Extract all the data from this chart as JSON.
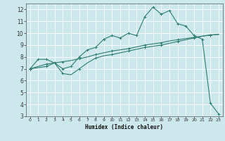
{
  "title": "",
  "xlabel": "Humidex (Indice chaleur)",
  "background_color": "#cce8ec",
  "grid_color": "#ffffff",
  "line_color": "#2e7d6e",
  "xlim": [
    -0.5,
    23.5
  ],
  "ylim": [
    3,
    12.5
  ],
  "xticks": [
    0,
    1,
    2,
    3,
    4,
    5,
    6,
    7,
    8,
    9,
    10,
    11,
    12,
    13,
    14,
    15,
    16,
    17,
    18,
    19,
    20,
    21,
    22,
    23
  ],
  "yticks": [
    3,
    4,
    5,
    6,
    7,
    8,
    9,
    10,
    11,
    12
  ],
  "line1_x": [
    0,
    1,
    2,
    3,
    4,
    5,
    6,
    7,
    8,
    9,
    10,
    11,
    12,
    13,
    14,
    15,
    16,
    17,
    18,
    19,
    20,
    21,
    22,
    23
  ],
  "line1_y": [
    7.0,
    7.8,
    7.8,
    7.5,
    7.0,
    7.2,
    8.0,
    8.6,
    8.8,
    9.5,
    9.8,
    9.6,
    10.0,
    9.8,
    11.4,
    12.2,
    11.6,
    11.9,
    10.8,
    10.6,
    9.8,
    9.5,
    4.1,
    3.2
  ],
  "line2_x": [
    0,
    1,
    2,
    3,
    4,
    5,
    6,
    7,
    8,
    9,
    10,
    11,
    12,
    13,
    14,
    15,
    16,
    17,
    18,
    19,
    20,
    21,
    22,
    23
  ],
  "line2_y": [
    7.0,
    7.2,
    7.4,
    7.5,
    7.6,
    7.7,
    7.85,
    8.0,
    8.2,
    8.35,
    8.5,
    8.6,
    8.7,
    8.85,
    9.0,
    9.1,
    9.2,
    9.35,
    9.45,
    9.55,
    9.65,
    9.75,
    9.85,
    9.9
  ],
  "line3_x": [
    0,
    1,
    2,
    3,
    4,
    5,
    6,
    7,
    8,
    9,
    10,
    11,
    12,
    13,
    14,
    15,
    16,
    17,
    18,
    19,
    20,
    21,
    22,
    23
  ],
  "line3_y": [
    7.0,
    7.1,
    7.2,
    7.5,
    6.6,
    6.5,
    7.0,
    7.5,
    7.9,
    8.1,
    8.2,
    8.35,
    8.5,
    8.65,
    8.8,
    8.9,
    9.0,
    9.15,
    9.3,
    9.45,
    9.6,
    9.75,
    9.85,
    9.9
  ]
}
